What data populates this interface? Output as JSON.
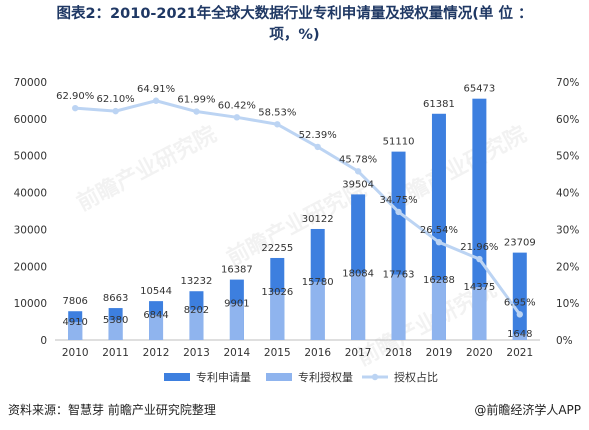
{
  "title_line1": "图表2：2010-2021年全球大数据行业专利申请量及授权量情况(单 位 ：",
  "title_line2": "项，%)",
  "source": "资料来源：智慧芽 前瞻产业研究院整理",
  "brand": "@前瞻经济学人APP",
  "watermark": "前瞻产业研究院",
  "colors": {
    "applications": "#3d7fdf",
    "grants": "#8fb4ee",
    "ratio": "#bcd4f3"
  },
  "chart_data": {
    "type": "bar",
    "categories": [
      "2010",
      "2011",
      "2012",
      "2013",
      "2014",
      "2015",
      "2016",
      "2017",
      "2018",
      "2019",
      "2020",
      "2021"
    ],
    "series": [
      {
        "name": "专利申请量",
        "type": "bar",
        "axis": "left",
        "values": [
          7806,
          8663,
          10544,
          13232,
          16387,
          22255,
          30122,
          39504,
          51110,
          61381,
          65473,
          23709
        ],
        "labels": [
          "7806",
          "8663",
          "10544",
          "13232",
          "16387",
          "22255",
          "30122",
          "39504",
          "51110",
          "61381",
          "65473",
          "23709"
        ]
      },
      {
        "name": "专利授权量",
        "type": "bar",
        "axis": "left",
        "values": [
          4910,
          5380,
          6844,
          8202,
          9901,
          13026,
          15780,
          18084,
          17763,
          16288,
          14375,
          1648
        ],
        "labels": [
          "4910",
          "5380",
          "6844",
          "8202",
          "9901",
          "13026",
          "15780",
          "18084",
          "17763",
          "16288",
          "14375",
          "1648"
        ]
      },
      {
        "name": "授权占比",
        "type": "line",
        "axis": "right",
        "values": [
          62.9,
          62.1,
          64.91,
          61.99,
          60.42,
          58.53,
          52.39,
          45.78,
          34.75,
          26.54,
          21.96,
          6.95
        ],
        "labels": [
          "62.90%",
          "62.10%",
          "64.91%",
          "61.99%",
          "60.42%",
          "58.53%",
          "52.39%",
          "45.78%",
          "34.75%",
          "26.54%",
          "21.96%",
          "6.95%"
        ]
      }
    ],
    "ylim": [
      0,
      70000
    ],
    "y_ticks": [
      "0",
      "10000",
      "20000",
      "30000",
      "40000",
      "50000",
      "60000",
      "70000"
    ],
    "y2lim": [
      0,
      70
    ],
    "y2_ticks": [
      "0%",
      "10%",
      "20%",
      "30%",
      "40%",
      "50%",
      "60%",
      "70%"
    ],
    "legend": "bottom"
  }
}
